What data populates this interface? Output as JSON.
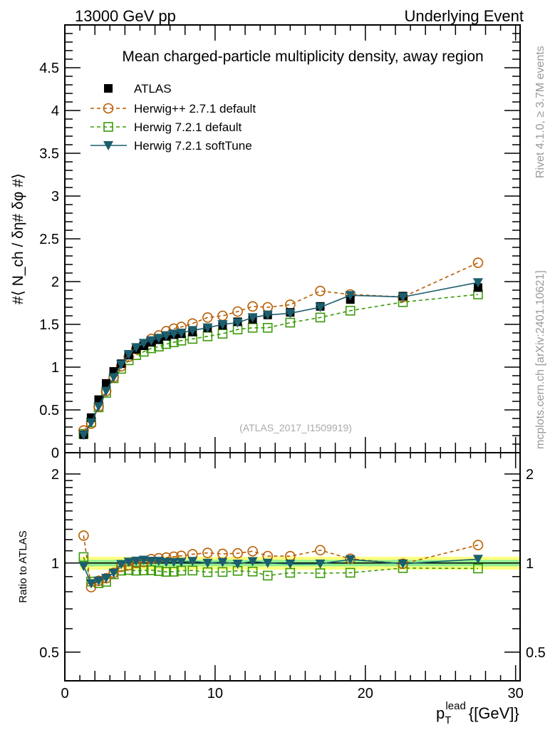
{
  "header": {
    "left": "13000 GeV pp",
    "right": "Underlying Event"
  },
  "side_labels": {
    "upper": "Rivet 4.1.0, ≥ 3.7M events",
    "lower": "mcplots.cern.ch [arXiv:2401.10621]"
  },
  "watermark": "(ATLAS_2017_I1509919)",
  "colors": {
    "atlas": "#000000",
    "herwigpp": "#b85c00",
    "herwig7": "#3c9a0a",
    "softtune": "#1b5e6e",
    "band_outer": "#ffff80",
    "band_inner": "#90ee90"
  },
  "chart_data": [
    {
      "type": "line",
      "title": "Mean charged-particle multiplicity density, away region",
      "ylabel": "#⟨ N_ch / δη# δφ #⟩",
      "xlabel": "",
      "xlim": [
        0,
        30.3
      ],
      "ylim": [
        0,
        5.0
      ],
      "yticks": [
        "0",
        "0.5",
        "1",
        "1.5",
        "2",
        "2.5",
        "3",
        "3.5",
        "4",
        "4.5"
      ],
      "xticks": [],
      "legend_position": "top-left",
      "x": [
        1.25,
        1.75,
        2.25,
        2.75,
        3.25,
        3.75,
        4.25,
        4.75,
        5.25,
        5.75,
        6.25,
        6.75,
        7.25,
        7.75,
        8.5,
        9.5,
        10.5,
        11.5,
        12.5,
        13.5,
        15,
        17,
        19,
        22.5,
        27.5
      ],
      "series": [
        {
          "name": "ATLAS",
          "style": "data",
          "values": [
            0.21,
            0.41,
            0.62,
            0.81,
            0.95,
            1.04,
            1.14,
            1.21,
            1.25,
            1.29,
            1.32,
            1.36,
            1.38,
            1.39,
            1.41,
            1.46,
            1.49,
            1.53,
            1.56,
            1.61,
            1.64,
            1.71,
            1.79,
            1.83,
            1.93
          ]
        },
        {
          "name": "Herwig++ 2.7.1 default",
          "style": "circle",
          "values": [
            0.26,
            0.34,
            0.54,
            0.72,
            0.88,
            1.01,
            1.12,
            1.21,
            1.26,
            1.33,
            1.37,
            1.42,
            1.45,
            1.47,
            1.51,
            1.58,
            1.6,
            1.65,
            1.71,
            1.7,
            1.73,
            1.89,
            1.85,
            1.82,
            2.22
          ]
        },
        {
          "name": "Herwig 7.2.1 default",
          "style": "square",
          "values": [
            0.22,
            0.355,
            0.53,
            0.7,
            0.87,
            0.98,
            1.08,
            1.14,
            1.18,
            1.22,
            1.24,
            1.27,
            1.29,
            1.31,
            1.33,
            1.36,
            1.39,
            1.44,
            1.46,
            1.46,
            1.52,
            1.58,
            1.66,
            1.76,
            1.85
          ]
        },
        {
          "name": "Herwig 7.2.1 softTune",
          "style": "triangle",
          "values": [
            0.205,
            0.35,
            0.54,
            0.72,
            0.88,
            1.03,
            1.15,
            1.23,
            1.28,
            1.31,
            1.34,
            1.37,
            1.39,
            1.4,
            1.43,
            1.46,
            1.5,
            1.52,
            1.58,
            1.61,
            1.63,
            1.7,
            1.84,
            1.82,
            1.99
          ]
        }
      ]
    },
    {
      "type": "line",
      "ylabel": "Ratio to ATLAS",
      "xlabel": "p_T^lead {[GeV]}",
      "xlabel_main": "p",
      "xlabel_sub": "T",
      "xlabel_sup": "lead",
      "xlabel_unit": "{[GeV]}",
      "yscale": "log",
      "xlim": [
        0,
        30.3
      ],
      "ylim": [
        0.4,
        2.36
      ],
      "yticks": [
        "0.5",
        "1",
        "2"
      ],
      "xticks": [
        "0",
        "10",
        "20",
        "30"
      ],
      "reference": "ATLAS"
    }
  ]
}
